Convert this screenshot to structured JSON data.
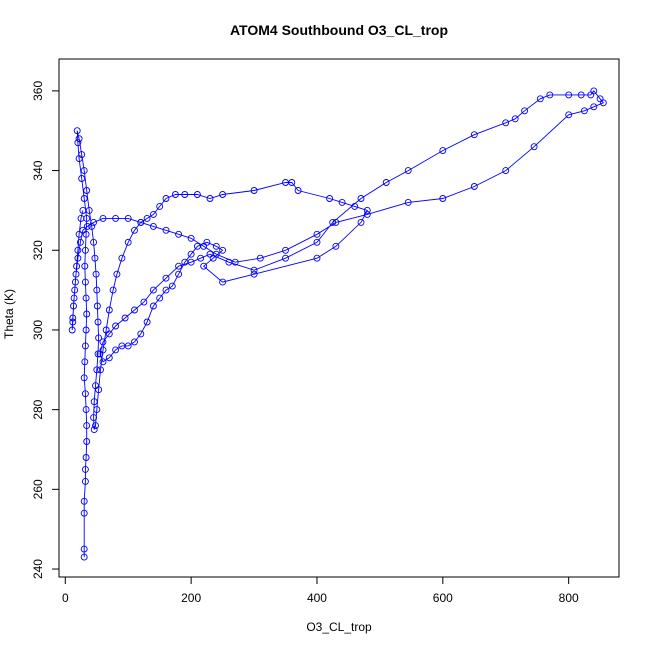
{
  "chart_data": {
    "type": "line",
    "title": "ATOM4 Southbound O3_CL_trop",
    "xlabel": "O3_CL_trop",
    "ylabel": "Theta (K)",
    "xlim": [
      -10,
      880
    ],
    "ylim": [
      238,
      368
    ],
    "xticks": [
      0,
      200,
      400,
      600,
      800
    ],
    "yticks": [
      240,
      260,
      280,
      300,
      320,
      340,
      360
    ],
    "grid": false,
    "color": "#0000ff",
    "marker": "open-circle",
    "series": [
      {
        "values": [
          [
            30,
            243
          ],
          [
            30,
            245
          ],
          [
            30,
            254
          ],
          [
            30,
            257
          ],
          [
            32,
            262
          ],
          [
            32,
            265
          ],
          [
            33,
            268
          ],
          [
            34,
            272
          ],
          [
            34,
            276
          ],
          [
            33,
            280
          ],
          [
            32,
            284
          ],
          [
            30,
            288
          ],
          [
            31,
            292
          ],
          [
            32,
            296
          ],
          [
            33,
            300
          ],
          [
            34,
            304
          ],
          [
            33,
            308
          ],
          [
            32,
            312
          ],
          [
            31,
            316
          ],
          [
            32,
            320
          ],
          [
            33,
            324
          ],
          [
            34,
            328
          ],
          [
            30,
            333
          ],
          [
            26,
            338
          ],
          [
            22,
            343
          ],
          [
            20,
            347
          ],
          [
            19,
            350
          ],
          [
            22,
            348
          ],
          [
            26,
            344
          ],
          [
            30,
            340
          ],
          [
            34,
            335
          ],
          [
            38,
            330
          ],
          [
            42,
            326
          ],
          [
            45,
            322
          ],
          [
            47,
            318
          ],
          [
            49,
            314
          ],
          [
            50,
            310
          ],
          [
            51,
            306
          ],
          [
            52,
            302
          ],
          [
            53,
            298
          ],
          [
            52,
            294
          ],
          [
            50,
            290
          ],
          [
            48,
            286
          ],
          [
            46,
            282
          ],
          [
            45,
            278
          ],
          [
            46,
            275
          ],
          [
            48,
            276
          ],
          [
            50,
            280
          ],
          [
            53,
            285
          ],
          [
            56,
            290
          ],
          [
            60,
            295
          ],
          [
            65,
            300
          ],
          [
            70,
            305
          ],
          [
            76,
            310
          ],
          [
            82,
            314
          ],
          [
            90,
            318
          ],
          [
            100,
            322
          ],
          [
            110,
            325
          ],
          [
            120,
            327
          ],
          [
            130,
            328
          ],
          [
            140,
            329
          ],
          [
            150,
            331
          ],
          [
            160,
            333
          ],
          [
            175,
            334
          ],
          [
            190,
            334
          ],
          [
            210,
            334
          ],
          [
            230,
            333
          ],
          [
            250,
            334
          ],
          [
            300,
            335
          ],
          [
            350,
            337
          ],
          [
            360,
            337
          ],
          [
            370,
            335
          ],
          [
            420,
            333
          ],
          [
            440,
            332
          ],
          [
            460,
            331
          ],
          [
            480,
            330
          ],
          [
            470,
            327
          ],
          [
            430,
            321
          ],
          [
            400,
            318
          ],
          [
            300,
            314
          ],
          [
            250,
            312
          ],
          [
            220,
            316
          ],
          [
            235,
            318
          ],
          [
            250,
            320
          ],
          [
            240,
            321
          ],
          [
            225,
            322
          ],
          [
            210,
            321
          ],
          [
            200,
            319
          ],
          [
            190,
            317
          ],
          [
            180,
            314
          ],
          [
            170,
            311
          ],
          [
            160,
            310
          ],
          [
            150,
            308
          ],
          [
            140,
            306
          ],
          [
            130,
            302
          ],
          [
            120,
            299
          ],
          [
            110,
            297
          ],
          [
            100,
            296
          ],
          [
            90,
            296
          ],
          [
            80,
            295
          ],
          [
            70,
            293
          ],
          [
            60,
            292
          ],
          [
            55,
            294
          ],
          [
            60,
            297
          ],
          [
            70,
            299
          ],
          [
            80,
            301
          ],
          [
            95,
            303
          ],
          [
            110,
            305
          ],
          [
            125,
            307
          ],
          [
            140,
            310
          ],
          [
            160,
            313
          ],
          [
            180,
            316
          ],
          [
            200,
            317
          ],
          [
            215,
            318
          ],
          [
            230,
            319
          ],
          [
            260,
            317
          ],
          [
            300,
            315
          ],
          [
            350,
            318
          ],
          [
            400,
            322
          ],
          [
            425,
            327
          ],
          [
            470,
            333
          ],
          [
            510,
            337
          ],
          [
            545,
            340
          ],
          [
            600,
            345
          ],
          [
            650,
            349
          ],
          [
            700,
            352
          ],
          [
            715,
            353
          ],
          [
            730,
            355
          ],
          [
            755,
            358
          ],
          [
            770,
            359
          ],
          [
            800,
            359
          ],
          [
            820,
            359
          ],
          [
            835,
            359
          ],
          [
            840,
            360
          ],
          [
            850,
            358
          ],
          [
            855,
            357
          ],
          [
            840,
            356
          ],
          [
            825,
            355
          ],
          [
            800,
            354
          ],
          [
            745,
            346
          ],
          [
            700,
            340
          ],
          [
            650,
            336
          ],
          [
            600,
            333
          ],
          [
            545,
            332
          ],
          [
            480,
            329
          ],
          [
            430,
            327
          ],
          [
            400,
            324
          ],
          [
            350,
            320
          ],
          [
            310,
            318
          ],
          [
            270,
            317
          ],
          [
            240,
            319
          ],
          [
            220,
            321
          ],
          [
            200,
            323
          ],
          [
            180,
            324
          ],
          [
            160,
            325
          ],
          [
            140,
            326
          ],
          [
            120,
            327
          ],
          [
            100,
            328
          ],
          [
            80,
            328
          ],
          [
            60,
            328
          ],
          [
            45,
            327
          ],
          [
            35,
            326
          ],
          [
            28,
            325
          ],
          [
            24,
            322
          ],
          [
            20,
            318
          ],
          [
            17,
            314
          ],
          [
            15,
            310
          ],
          [
            13,
            306
          ],
          [
            12,
            302
          ],
          [
            11,
            300
          ],
          [
            12,
            303
          ],
          [
            14,
            308
          ],
          [
            16,
            312
          ],
          [
            18,
            316
          ],
          [
            20,
            320
          ],
          [
            22,
            324
          ],
          [
            25,
            328
          ],
          [
            28,
            330
          ]
        ]
      }
    ]
  }
}
